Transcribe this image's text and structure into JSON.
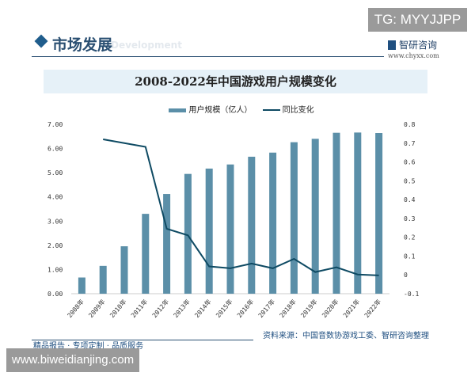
{
  "watermark_tag": "TG: MYYJJPP",
  "site_overlay": "www.biweidianjing.com",
  "header": {
    "section": "市场发展",
    "section_bg": "Development",
    "logo": "智研咨询",
    "logo_url": "www.chyxx.com"
  },
  "footer": {
    "source": "资料来源：中国音数协游戏工委、智研咨询整理",
    "slogan": "精品报告 · 专项定制 · 品质服务"
  },
  "colors": {
    "bar": "#5b8fa8",
    "line": "#0e4a63",
    "title_band": "#e6f1f8"
  },
  "chart_data": {
    "type": "bar+line",
    "title": "2008-2022年中国游戏用户规模变化",
    "legend_position": "top",
    "categories": [
      "2008年",
      "2009年",
      "2010年",
      "2011年",
      "2012年",
      "2013年",
      "2014年",
      "2015年",
      "2016年",
      "2017年",
      "2018年",
      "2019年",
      "2020年",
      "2021年",
      "2022年"
    ],
    "series": [
      {
        "name": "用户规模（亿人）",
        "type": "bar",
        "axis": "left",
        "values": [
          0.67,
          1.15,
          1.96,
          3.3,
          4.12,
          4.95,
          5.17,
          5.34,
          5.66,
          5.83,
          6.26,
          6.4,
          6.65,
          6.66,
          6.64
        ]
      },
      {
        "name": "同比变化",
        "type": "line",
        "axis": "right",
        "values": [
          null,
          0.72,
          0.7,
          0.68,
          0.245,
          0.21,
          0.045,
          0.035,
          0.06,
          0.035,
          0.085,
          0.015,
          0.04,
          0.002,
          -0.003
        ]
      }
    ],
    "ylim_left": [
      0,
      7
    ],
    "yticks_left": [
      "0.00",
      "1.00",
      "2.00",
      "3.00",
      "4.00",
      "5.00",
      "6.00",
      "7.00"
    ],
    "ylim_right": [
      -0.1,
      0.8
    ],
    "yticks_right": [
      "-0.1",
      "0",
      "0.1",
      "0.2",
      "0.3",
      "0.4",
      "0.5",
      "0.6",
      "0.7",
      "0.8"
    ],
    "grid": false
  }
}
